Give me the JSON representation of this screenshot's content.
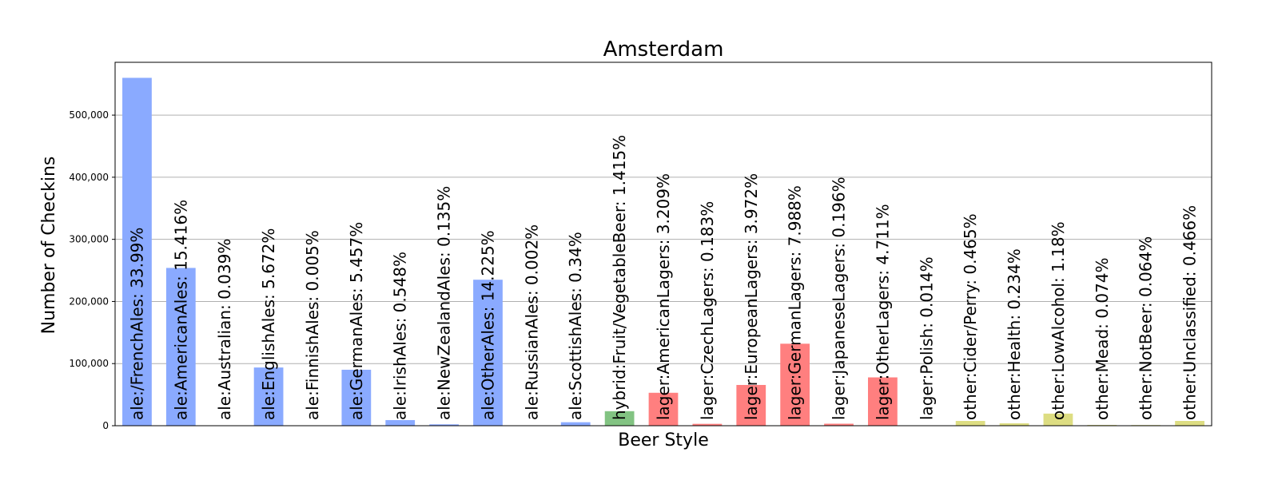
{
  "chart_data": {
    "type": "bar",
    "title": "Amsterdam",
    "xlabel": "Beer Style",
    "ylabel": "Number of Checkins",
    "ylim": [
      0,
      585000
    ],
    "yticks": [
      0,
      100000,
      200000,
      300000,
      400000,
      500000
    ],
    "ytick_labels": [
      "0",
      "100,000",
      "200,000",
      "300,000",
      "400,000",
      "500,000"
    ],
    "grid": "y",
    "categories": [
      "ale:/FrenchAles",
      "ale:AmericanAles",
      "ale:Australian",
      "ale:EnglishAles",
      "ale:FinnishAles",
      "ale:GermanAles",
      "ale:IrishAles",
      "ale:NewZealandAles",
      "ale:OtherAles",
      "ale:RussianAles",
      "ale:ScottishAles",
      "hybrid:Fruit/VegetableBeer",
      "lager:AmericanLagers",
      "lager:CzechLagers",
      "lager:EuropeanLagers",
      "lager:GermanLagers",
      "lager:JapaneseLagers",
      "lager:OtherLagers",
      "lager:Polish",
      "other:Cider/Perry",
      "other:Health",
      "other:LowAlcohol",
      "other:Mead",
      "other:NotBeer",
      "other:Unclassified"
    ],
    "values": [
      560000,
      254000,
      640,
      93700,
      80,
      90100,
      9050,
      2230,
      235000,
      30,
      5620,
      23400,
      53000,
      3020,
      65600,
      132000,
      3240,
      77800,
      230,
      7680,
      3870,
      19500,
      1220,
      1060,
      7700
    ],
    "labels": [
      "ale:/FrenchAles: 33.99%",
      "ale:AmericanAles: 15.416%",
      "ale:Australian: 0.039%",
      "ale:EnglishAles: 5.672%",
      "ale:FinnishAles: 0.005%",
      "ale:GermanAles: 5.457%",
      "ale:IrishAles: 0.548%",
      "ale:NewZealandAles: 0.135%",
      "ale:OtherAles: 14.225%",
      "ale:RussianAles: 0.002%",
      "ale:ScottishAles: 0.34%",
      "hybrid:Fruit/VegetableBeer: 1.415%",
      "lager:AmericanLagers: 3.209%",
      "lager:CzechLagers: 0.183%",
      "lager:EuropeanLagers: 3.972%",
      "lager:GermanLagers: 7.988%",
      "lager:JapaneseLagers: 0.196%",
      "lager:OtherLagers: 4.711%",
      "lager:Polish: 0.014%",
      "other:Cider/Perry: 0.465%",
      "other:Health: 0.234%",
      "other:LowAlcohol: 1.18%",
      "other:Mead: 0.074%",
      "other:NotBeer: 0.064%",
      "other:Unclassified: 0.466%"
    ],
    "colors": {
      "ale": "#8aaaff",
      "hybrid": "#82c382",
      "lager": "#ff7f7f",
      "other": "#dddd82",
      "grid": "#b0b0b0"
    }
  }
}
